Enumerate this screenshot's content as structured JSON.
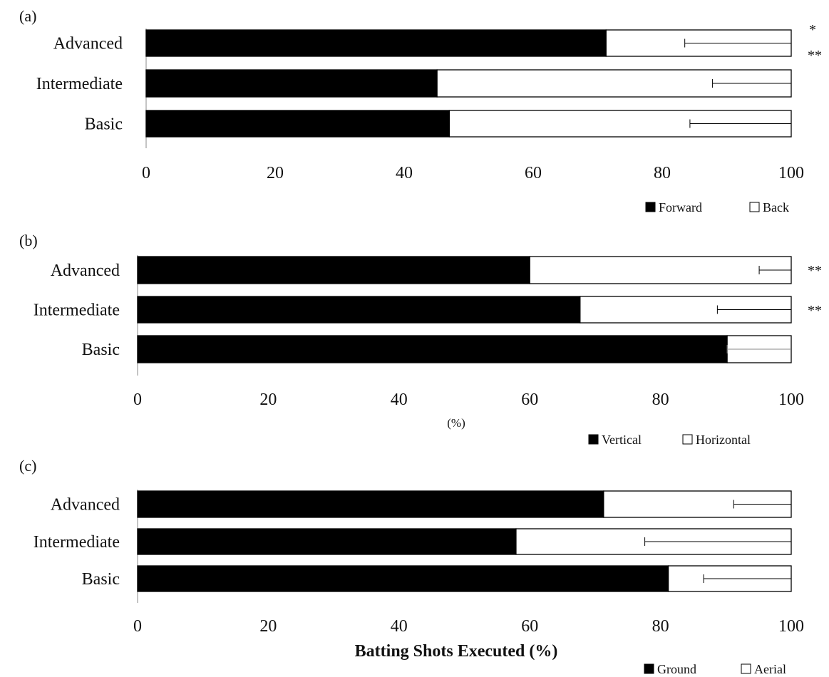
{
  "chart_data": [
    {
      "type": "bar",
      "stacked": true,
      "orientation": "horizontal",
      "panel_label": "(a)",
      "categories": [
        "Advanced",
        "Intermediate",
        "Basic"
      ],
      "series": [
        {
          "name": "Forward",
          "color": "#000000",
          "values": [
            71.3,
            45.1,
            47.0
          ]
        },
        {
          "name": "Back",
          "color": "#ffffff",
          "values": [
            28.7,
            54.9,
            53.0
          ]
        }
      ],
      "error_bar_low": [
        83.5,
        87.8,
        84.3
      ],
      "significance": [
        [
          "*",
          "**"
        ],
        [],
        []
      ],
      "xlim": [
        0,
        100
      ],
      "x_ticks": [
        "0",
        "20",
        "40",
        "60",
        "80",
        "100"
      ],
      "xlabel": "",
      "legend_position": "bottom-right"
    },
    {
      "type": "bar",
      "stacked": true,
      "orientation": "horizontal",
      "panel_label": "(b)",
      "categories": [
        "Advanced",
        "Intermediate",
        "Basic"
      ],
      "series": [
        {
          "name": "Vertical",
          "color": "#000000",
          "values": [
            60.0,
            67.7,
            90.2
          ]
        },
        {
          "name": "Horizontal",
          "color": "#ffffff",
          "values": [
            40.0,
            32.3,
            9.8
          ]
        }
      ],
      "error_bar_low": [
        95.1,
        88.7,
        90.2
      ],
      "significance": [
        [
          "**"
        ],
        [
          "**"
        ],
        []
      ],
      "xlim": [
        0,
        100
      ],
      "x_ticks": [
        "0",
        "20",
        "40",
        "60",
        "80",
        "100"
      ],
      "xlabel": "(%)",
      "legend_position": "bottom-right"
    },
    {
      "type": "bar",
      "stacked": true,
      "orientation": "horizontal",
      "panel_label": "(c)",
      "categories": [
        "Advanced",
        "Intermediate",
        "Basic"
      ],
      "series": [
        {
          "name": "Ground",
          "color": "#000000",
          "values": [
            71.3,
            57.9,
            81.2
          ]
        },
        {
          "name": "Aerial",
          "color": "#ffffff",
          "values": [
            28.7,
            42.1,
            18.8
          ]
        }
      ],
      "error_bar_low": [
        91.2,
        77.6,
        86.6
      ],
      "significance": [
        [],
        [],
        []
      ],
      "xlim": [
        0,
        100
      ],
      "x_ticks": [
        "0",
        "20",
        "40",
        "60",
        "80",
        "100"
      ],
      "xlabel": "Batting Shots Executed (%)",
      "legend_position": "bottom-right"
    }
  ]
}
